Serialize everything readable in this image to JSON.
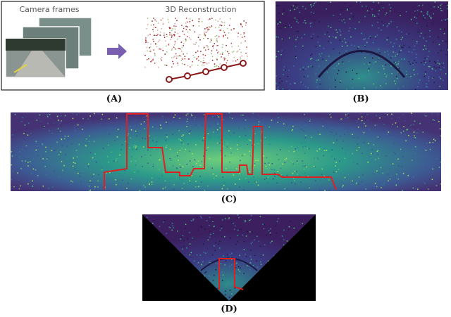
{
  "panel_a": {
    "label": "(A)",
    "camera_label": "Camera frames",
    "reconstruction_label": "3D Reconstruction"
  },
  "panel_b": {
    "label": "(B)"
  },
  "panel_c": {
    "label": "(C)"
  },
  "panel_d": {
    "label": "(D)"
  }
}
